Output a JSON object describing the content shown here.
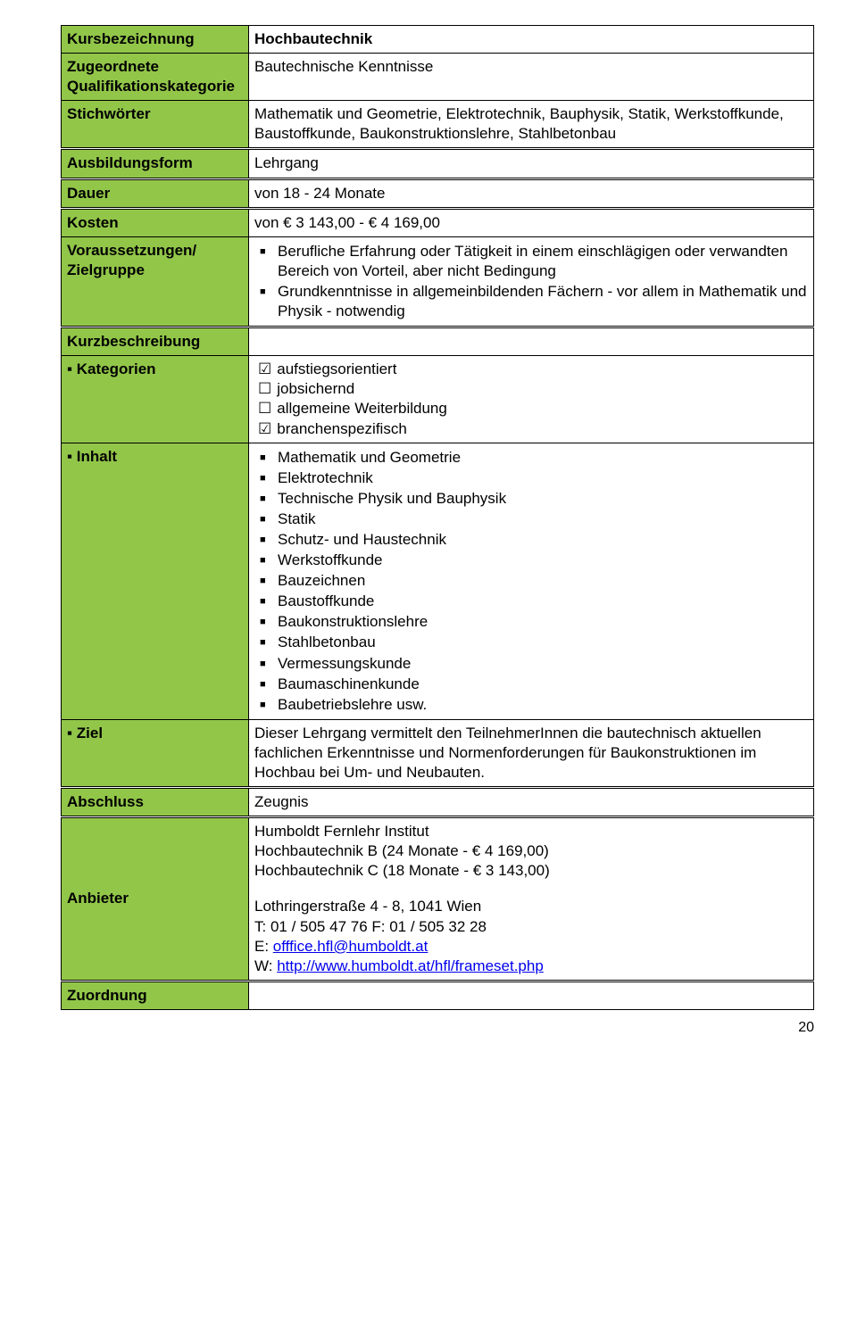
{
  "colors": {
    "header_bg": "#92c649",
    "border": "#000000",
    "text": "#000000",
    "link": "#0000ee",
    "page_bg": "#ffffff"
  },
  "typography": {
    "font_family": "Arial",
    "body_fontsize_pt": 13,
    "bold_labels": true
  },
  "page_number": "20",
  "rows": {
    "kursbezeichnung": {
      "label": "Kursbezeichnung",
      "value": "Hochbautechnik"
    },
    "qualifikation": {
      "label": "Zugeordnete Qualifikationskategorie",
      "value": "Bautechnische Kenntnisse"
    },
    "stichwoerter": {
      "label": "Stichwörter",
      "value": "Mathematik und Geometrie, Elektrotechnik, Bauphysik, Statik, Werkstoffkunde, Baustoffkunde, Baukonstruktionslehre, Stahlbetonbau"
    },
    "ausbildungsform": {
      "label": "Ausbildungsform",
      "value": "Lehrgang"
    },
    "dauer": {
      "label": "Dauer",
      "value": "von 18 - 24 Monate"
    },
    "kosten": {
      "label": "Kosten",
      "value": "von € 3 143,00 - € 4 169,00"
    },
    "voraussetzungen": {
      "label": "Voraussetzungen/ Zielgruppe",
      "items": [
        "Berufliche Erfahrung oder Tätigkeit in einem einschlägigen oder verwandten Bereich von Vorteil, aber nicht Bedingung",
        "Grundkenntnisse in allgemeinbildenden Fächern - vor allem in Mathematik und Physik - notwendig"
      ]
    },
    "kurzbeschreibung": {
      "label": "Kurzbeschreibung"
    },
    "kategorien": {
      "label": "Kategorien",
      "bullet": "▪",
      "options": [
        {
          "checked": true,
          "text": "aufstiegsorientiert"
        },
        {
          "checked": false,
          "text": "jobsichernd"
        },
        {
          "checked": false,
          "text": "allgemeine Weiterbildung"
        },
        {
          "checked": true,
          "text": "branchenspezifisch"
        }
      ]
    },
    "inhalt": {
      "label": "Inhalt",
      "bullet": "▪",
      "items": [
        "Mathematik und Geometrie",
        "Elektrotechnik",
        "Technische Physik und Bauphysik",
        "Statik",
        "Schutz- und Haustechnik",
        "Werkstoffkunde",
        "Bauzeichnen",
        "Baustoffkunde",
        "Baukonstruktionslehre",
        "Stahlbetonbau",
        "Vermessungskunde",
        "Baumaschinenkunde",
        "Baubetriebslehre usw."
      ]
    },
    "ziel": {
      "label": "Ziel",
      "bullet": "▪",
      "value": "Dieser Lehrgang vermittelt den TeilnehmerInnen die bautechnisch aktuellen fachlichen Erkenntnisse und Normenforderungen für Baukonstruktionen im Hochbau bei Um- und Neubauten."
    },
    "abschluss": {
      "label": "Abschluss",
      "value": "Zeugnis"
    },
    "anbieter": {
      "label": "Anbieter",
      "line1": "Humboldt Fernlehr Institut",
      "line2": "Hochbautechnik B (24 Monate - € 4 169,00)",
      "line3": "Hochbautechnik C (18 Monate - € 3 143,00)",
      "addr1": "Lothringerstraße 4 - 8, 1041 Wien",
      "tel": "T: 01 / 505 47 76   F: 01 / 505 32 28",
      "email_prefix": "E: ",
      "email": "offfice.hfl@humboldt.at",
      "web_prefix": "W: ",
      "web": "http://www.humboldt.at/hfl/frameset.php"
    },
    "zuordnung": {
      "label": "Zuordnung"
    }
  }
}
